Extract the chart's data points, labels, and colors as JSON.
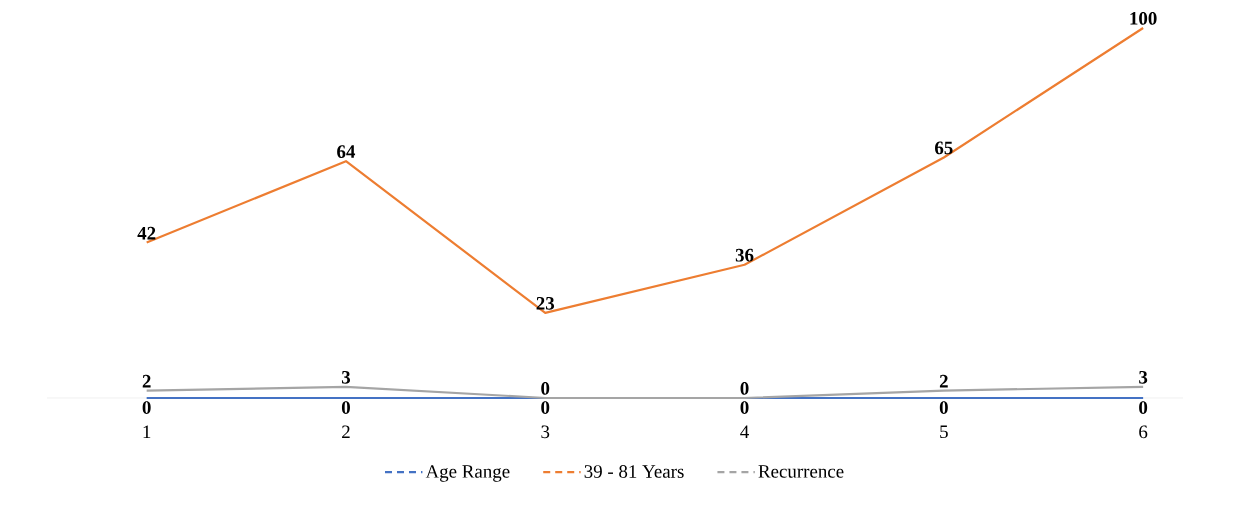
{
  "chart_data": {
    "type": "line",
    "categories": [
      "1",
      "2",
      "3",
      "4",
      "5",
      "6"
    ],
    "series": [
      {
        "name": "Age Range",
        "color": "#4472c4",
        "values": [
          0,
          0,
          0,
          0,
          0,
          0
        ]
      },
      {
        "name": "39 - 81 Years",
        "color": "#ed7d31",
        "values": [
          42,
          64,
          23,
          36,
          65,
          100
        ]
      },
      {
        "name": "Recurrence",
        "color": "#a5a5a5",
        "values": [
          2,
          3,
          0,
          0,
          2,
          3
        ]
      }
    ],
    "tick_labels": "x",
    "data_labels": true,
    "legend": "bottom",
    "marker": "none",
    "line_style": "solid"
  }
}
